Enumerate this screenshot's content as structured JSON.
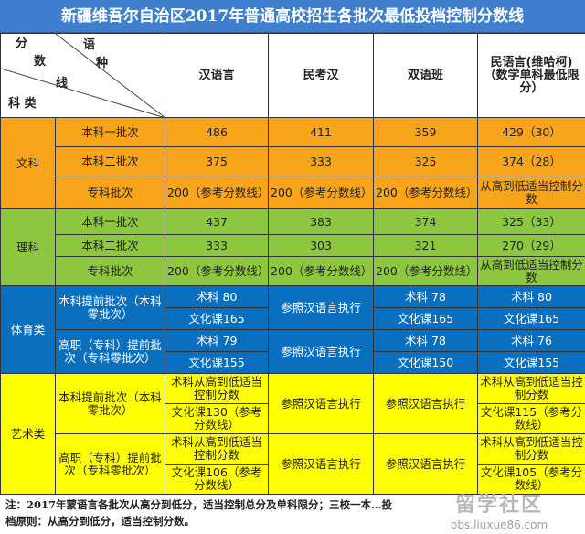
{
  "title": "新疆维吾尔自治区2017年普通高校招生各批次最低投档控制分数线",
  "header": {
    "corner": {
      "fen": "分",
      "shu": "数",
      "xian": "线",
      "yu": "语",
      "zhong": "种",
      "kelei": "科 类"
    },
    "cols": [
      "汉语言",
      "民考汉",
      "双语班",
      "民语言(维哈柯)（数学单科最低限分）"
    ]
  },
  "wenke": {
    "label": "文科",
    "rows": [
      {
        "batch": "本科一批次",
        "v": [
          "486",
          "411",
          "359",
          "429（30）"
        ]
      },
      {
        "batch": "本科二批次",
        "v": [
          "375",
          "333",
          "325",
          "374（28）"
        ]
      },
      {
        "batch": "专科批次",
        "v": [
          "200（参考分数线）",
          "200（参考分数线）",
          "200（参考分数线）",
          "从高到低适当控制分数"
        ]
      }
    ]
  },
  "like": {
    "label": "理科",
    "rows": [
      {
        "batch": "本科一批次",
        "v": [
          "437",
          "383",
          "374",
          "325（33）"
        ]
      },
      {
        "batch": "本科二批次",
        "v": [
          "333",
          "303",
          "321",
          "270（29）"
        ]
      },
      {
        "batch": "专科批次",
        "v": [
          "200（参考分数线）",
          "200（参考分数线）",
          "200（参考分数线）",
          "从高到低适当控制分数"
        ]
      }
    ]
  },
  "tiyu": {
    "label": "体育类",
    "groups": [
      {
        "batch": "本科提前批次（本科零批次）",
        "a": [
          "术科 80",
          "文化课165"
        ],
        "b": "参照汉语言执行",
        "c": [
          "术科 78",
          "文化课165"
        ],
        "d": [
          "术科 80",
          "文化课165"
        ]
      },
      {
        "batch": "高职（专科）提前批次（专科零批次）",
        "a": [
          "术科 79",
          "文化课155"
        ],
        "b": "参照汉语言执行",
        "c": [
          "术科 78",
          "文化课150"
        ],
        "d": [
          "术科 76",
          "文化课155"
        ]
      }
    ]
  },
  "yishu": {
    "label": "艺术类",
    "groups": [
      {
        "batch": "本科提前批次（本科零批次）",
        "a": [
          "术科从高到低适当控制分数",
          "文化课130（参考分数线）"
        ],
        "b": "参照汉语言执行",
        "c": "参照汉语言执行",
        "d": [
          "术科从高到低适当控制分数",
          "文化课115（参考分数线）"
        ]
      },
      {
        "batch": "高职（专科）提前批次（专科零批次）",
        "a": [
          "术科从高到低适当控制分数",
          "文化课106（参考分数线）"
        ],
        "b": "参照汉语言执行",
        "c": "参照汉语言执行",
        "d": [
          "术科从高到低适当控制分数",
          "文化课105（参考分数线）"
        ]
      }
    ]
  },
  "note": "注：2017年蒙语言各批次从高分到低分，适当控制总分及单科限分；三校一本…投档原则：从高分到低分，适当控制分数。",
  "watermark": {
    "text": "留学社区",
    "url": "bbs.liuxue86.com"
  }
}
